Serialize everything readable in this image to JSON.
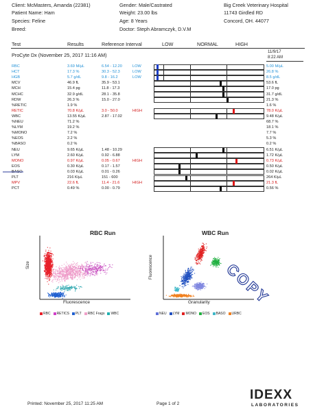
{
  "header": {
    "client": "Client: McMasters, Amanda (22381)",
    "patient": "Patient Name: Ham",
    "species": "Species: Feline",
    "breed": "Breed:",
    "gender": "Gender: Male/Castrated",
    "weight": "Weight: 23.00 lbs",
    "age": "Age: 8 Years",
    "doctor": "Doctor: Steph Abramczyk, D.V.M",
    "hospital_name": "Big Creek Veterinary Hospital",
    "hospital_address": "11743 Girdled RD",
    "hospital_city": "Concord, OH. 44077"
  },
  "columns": {
    "test": "Test",
    "results": "Results",
    "ref": "Reference Interval",
    "low": "LOW",
    "normal": "NORMAL",
    "high": "HIGH"
  },
  "section": {
    "title": "ProCyte Dx (November 25, 2017 11:16 AM)",
    "date": "11/9/17",
    "time": "8:22 AM"
  },
  "rows": [
    {
      "test": "RBC",
      "result": "3.69 M/µL",
      "ref": "6.54 - 12.20",
      "flag": "LOW",
      "prev": "5.00 M/µL",
      "color": "blue",
      "bar": true,
      "level": 0.02,
      "mk": "#1a3cc8",
      "prevlevel": 0.08
    },
    {
      "test": "HCT",
      "result": "17.3 %",
      "ref": "30.3 - 52.3",
      "flag": "LOW",
      "prev": "26.8 %",
      "color": "blue",
      "bar": true,
      "level": 0.02,
      "mk": "#1a3cc8",
      "prevlevel": 0.08
    },
    {
      "test": "HGB",
      "result": "5.7 g/dL",
      "ref": "9.8 - 16.2",
      "flag": "LOW",
      "prev": "8.5 g/dL",
      "color": "blue",
      "bar": true,
      "level": 0.02,
      "mk": "#1a3cc8",
      "prevlevel": 0.08
    },
    {
      "test": "MCV",
      "result": "46.9 fL",
      "ref": "35.9 - 53.1",
      "flag": "",
      "prev": "53.6 fL",
      "color": "",
      "bar": true,
      "level": 0.6,
      "mk": "#000"
    },
    {
      "test": "MCH",
      "result": "15.4 pg",
      "ref": "11.8 - 17.3",
      "flag": "",
      "prev": "17.0 pg",
      "color": "",
      "bar": true,
      "level": 0.62,
      "mk": "#000"
    },
    {
      "test": "MCHC",
      "result": "32.9 g/dL",
      "ref": "28.1 - 35.8",
      "flag": "",
      "prev": "31.7 g/dL",
      "color": "",
      "bar": true,
      "level": 0.62,
      "mk": "#000"
    },
    {
      "test": "RDW",
      "result": "26.3 %",
      "ref": "15.0 - 27.0",
      "flag": "",
      "prev": "21.3 %",
      "color": "",
      "bar": true,
      "level": 0.66,
      "mk": "#000"
    },
    {
      "test": "%RETIC",
      "result": "1.9 %",
      "ref": "",
      "flag": "",
      "prev": "1.6 %",
      "color": "",
      "bar": false
    },
    {
      "test": "RETIC",
      "result": "70.8 K/µL",
      "ref": "3.0 - 50.0",
      "flag": "HIGH",
      "prev": "78.0 K/µL",
      "color": "red",
      "bar": true,
      "level": 0.72,
      "mk": "#e01818"
    },
    {
      "test": "WBC",
      "result": "13.55 K/µL",
      "ref": "2.87 - 17.02",
      "flag": "",
      "prev": "9.48 K/µL",
      "color": "",
      "bar": true,
      "level": 0.56,
      "mk": "#000"
    },
    {
      "test": "%NEU",
      "result": "71.2 %",
      "ref": "",
      "flag": "",
      "prev": "68.7 %",
      "color": "",
      "bar": false
    },
    {
      "test": "%LYM",
      "result": "19.2 %",
      "ref": "",
      "flag": "",
      "prev": "18.1 %",
      "color": "",
      "bar": false
    },
    {
      "test": "%MONO",
      "result": "7.2 %",
      "ref": "",
      "flag": "",
      "prev": "7.7 %",
      "color": "",
      "bar": false
    },
    {
      "test": "%EOS",
      "result": "2.2 %",
      "ref": "",
      "flag": "",
      "prev": "5.3 %",
      "color": "",
      "bar": false
    },
    {
      "test": "%BASO",
      "result": "0.2 %",
      "ref": "",
      "flag": "",
      "prev": "0.2 %",
      "color": "",
      "bar": false
    },
    {
      "test": "NEU",
      "result": "9.65 K/µL",
      "ref": "1.48 - 10.29",
      "flag": "",
      "prev": "6.51 K/µL",
      "color": "",
      "bar": true,
      "level": 0.62,
      "mk": "#000"
    },
    {
      "test": "LYM",
      "result": "2.60 K/µL",
      "ref": "0.92 - 6.88",
      "flag": "",
      "prev": "1.72 K/µL",
      "color": "",
      "bar": true,
      "level": 0.38,
      "mk": "#000"
    },
    {
      "test": "MONO",
      "result": "0.97 K/µL",
      "ref": "0.05 - 0.67",
      "flag": "HIGH",
      "prev": "0.73 K/µL",
      "color": "red",
      "bar": true,
      "level": 0.74,
      "mk": "#e01818"
    },
    {
      "test": "EOS",
      "result": "0.30 K/µL",
      "ref": "0.17 - 1.57",
      "flag": "",
      "prev": "0.50 K/µL",
      "color": "",
      "bar": true,
      "level": 0.22,
      "mk": "#000"
    },
    {
      "test": "BASO",
      "result": "0.03 K/µL",
      "ref": "0.01 - 0.26",
      "flag": "",
      "prev": "0.02 K/µL",
      "color": "",
      "bar": true,
      "level": 0.22,
      "mk": "#000"
    },
    {
      "test": "PLT",
      "result": "216 K/µL",
      "ref": "151 - 600",
      "flag": "",
      "prev": "264 K/µL",
      "color": "",
      "bar": true,
      "level": 0.28,
      "mk": "#000"
    },
    {
      "test": "MPV",
      "result": "22.6 fL",
      "ref": "11.4 - 21.6",
      "flag": "HIGH",
      "prev": "21.3 fL",
      "color": "red",
      "bar": true,
      "level": 0.72,
      "mk": "#e01818"
    },
    {
      "test": "PCT",
      "result": "0.49 %",
      "ref": "0.00 - 0.79",
      "flag": "",
      "prev": "0.56 %",
      "color": "",
      "bar": true,
      "level": 0.6,
      "mk": "#000"
    }
  ],
  "plots": {
    "rbc_title": "RBC Run",
    "wbc_title": "WBC Run",
    "rbc_ylabel": "Size",
    "rbc_xlabel": "Fluorescence",
    "wbc_ylabel": "Fluorescence",
    "wbc_xlabel": "Granularity",
    "rbc_legend": [
      {
        "label": "RBC",
        "color": "#e8202a"
      },
      {
        "label": "RETICS",
        "color": "#d040c8"
      },
      {
        "label": "PLT",
        "color": "#2060d0"
      },
      {
        "label": "RBC Frags",
        "color": "#f0a0c8"
      },
      {
        "label": "WBC",
        "color": "#20b0b0"
      }
    ],
    "wbc_legend": [
      {
        "label": "NEU",
        "color": "#6070d8"
      },
      {
        "label": "LYM",
        "color": "#2050c0"
      },
      {
        "label": "MONO",
        "color": "#e02020"
      },
      {
        "label": "EOS",
        "color": "#20b040"
      },
      {
        "label": "BASO",
        "color": "#40b8c8"
      },
      {
        "label": "URBC",
        "color": "#f08020"
      }
    ],
    "stamp": "COPY"
  },
  "footer": {
    "printed": "Printed: November 25, 2017 11:25 AM",
    "page": "Page 1 of 2",
    "logo": "IDEXX",
    "logo_sub": "LABORATORIES"
  }
}
